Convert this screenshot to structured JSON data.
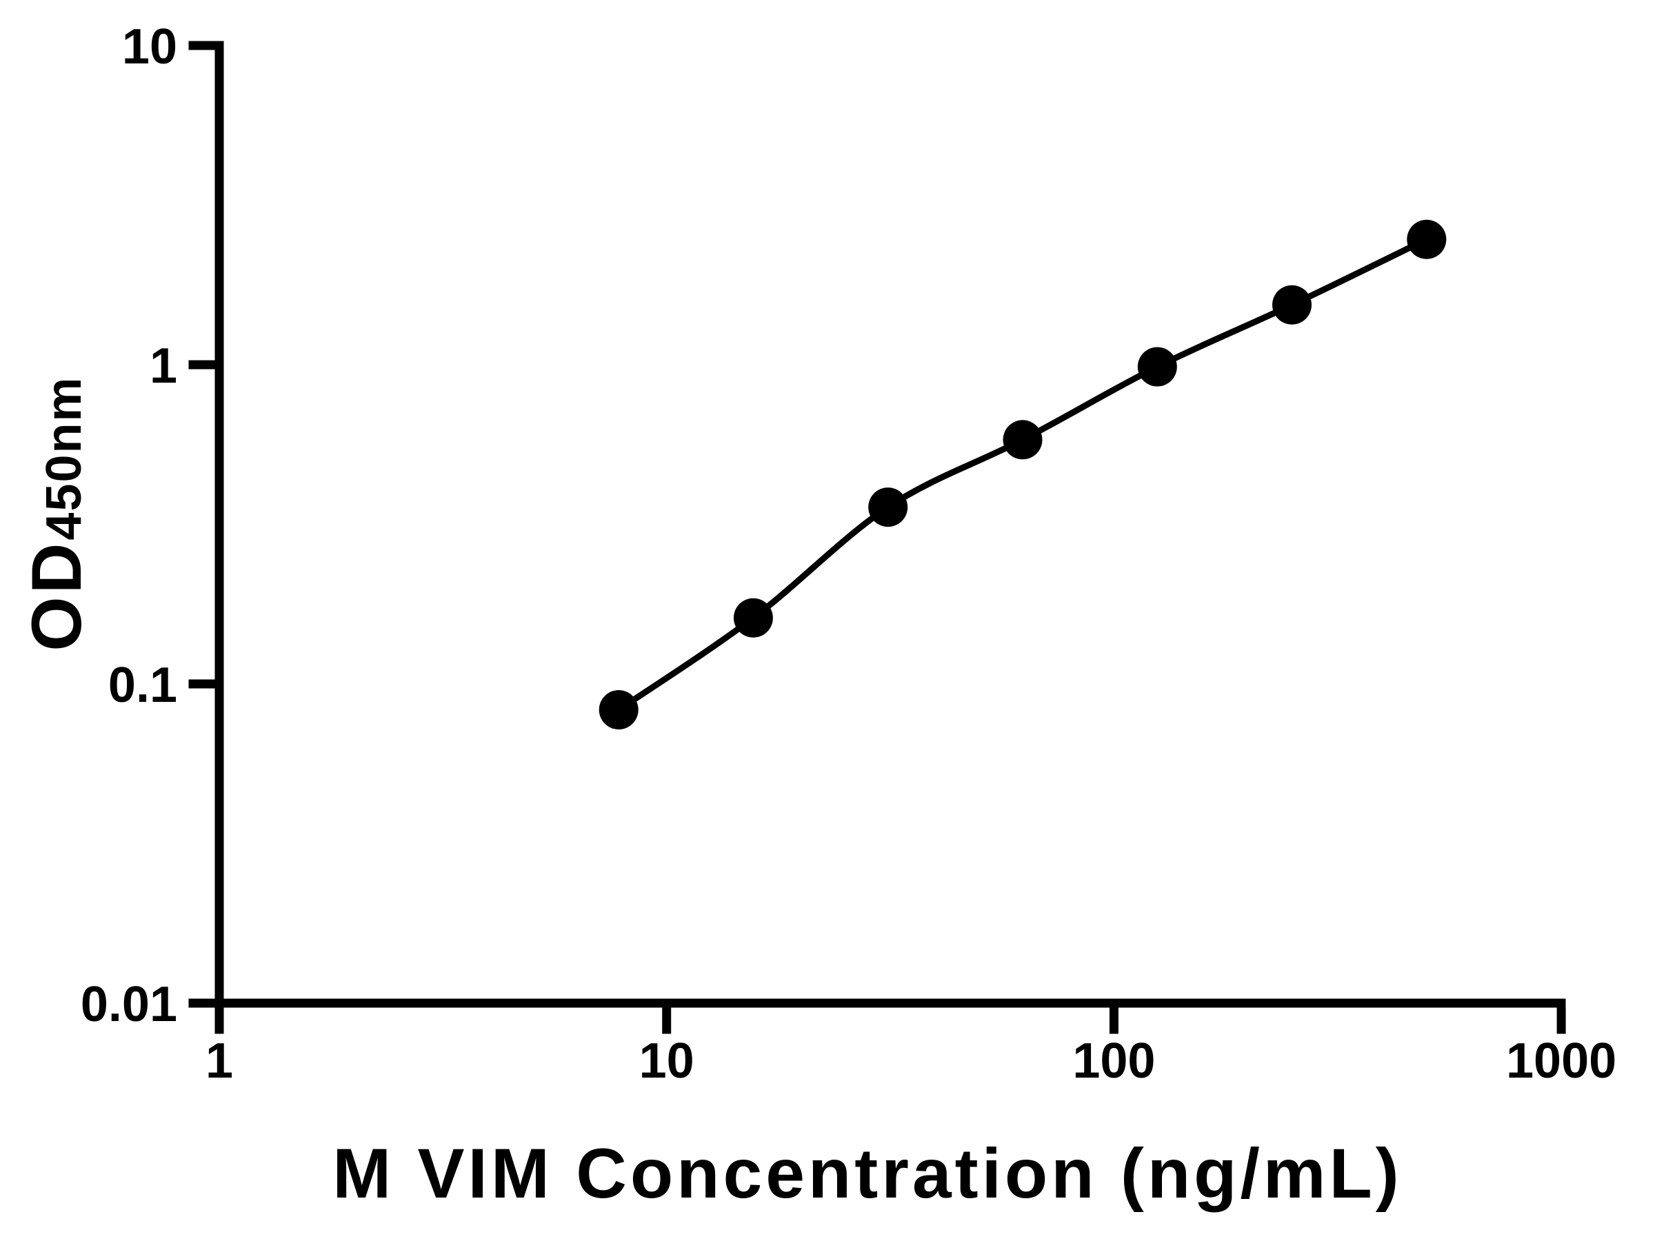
{
  "chart_data": {
    "type": "scatter",
    "subtype": "standard-curve-with-fit-line",
    "title": "",
    "xlabel": "M VIM Concentration (ng/mL)",
    "ylabel_main": "OD",
    "ylabel_sub": "450nm",
    "x_scale": "log10",
    "y_scale": "log10",
    "xlim": [
      1,
      1000
    ],
    "ylim": [
      0.01,
      10
    ],
    "x_ticks": [
      {
        "value": 1,
        "label": "1"
      },
      {
        "value": 10,
        "label": "10"
      },
      {
        "value": 100,
        "label": "100"
      },
      {
        "value": 1000,
        "label": "1000"
      }
    ],
    "y_ticks": [
      {
        "value": 0.01,
        "label": "0.01"
      },
      {
        "value": 0.1,
        "label": "0.1"
      },
      {
        "value": 1,
        "label": "1"
      },
      {
        "value": 10,
        "label": "10"
      }
    ],
    "series": [
      {
        "marker": "filled-circle",
        "color": "#000000",
        "line": "smooth",
        "points": [
          {
            "x": 7.8125,
            "y": 0.083
          },
          {
            "x": 15.625,
            "y": 0.161
          },
          {
            "x": 31.25,
            "y": 0.358
          },
          {
            "x": 62.5,
            "y": 0.582
          },
          {
            "x": 125,
            "y": 0.985
          },
          {
            "x": 250,
            "y": 1.54
          },
          {
            "x": 500,
            "y": 2.47
          }
        ]
      }
    ],
    "grid": false,
    "legend": false,
    "background": "#ffffff",
    "axis_color": "#000000"
  }
}
